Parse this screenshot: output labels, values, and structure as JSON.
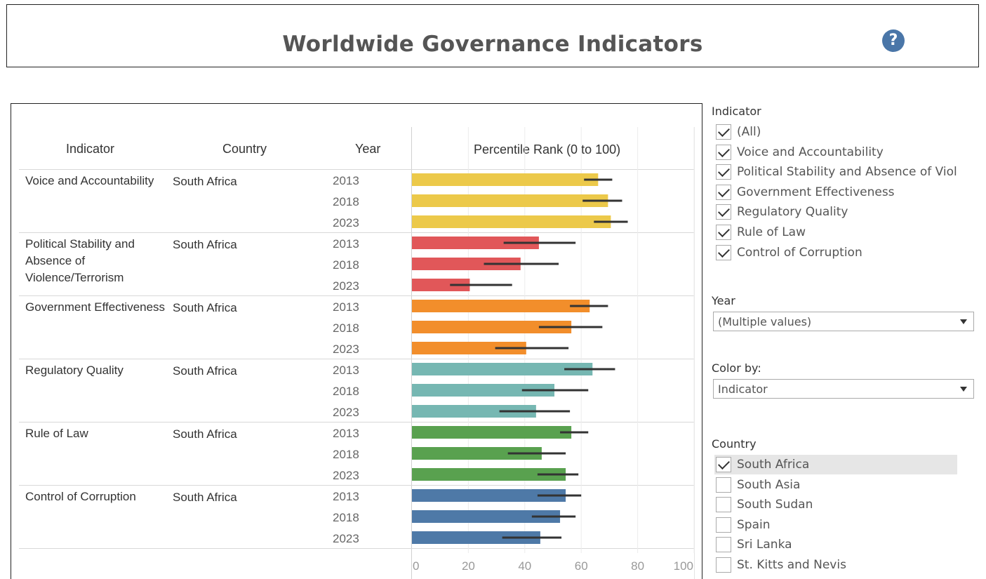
{
  "header": {
    "title": "Worldwide Governance Indicators",
    "help_icon": "?"
  },
  "table": {
    "columns": {
      "indicator": "Indicator",
      "country": "Country",
      "year": "Year",
      "rank": "Percentile Rank (0 to 100)"
    },
    "rows": [
      {
        "indicator": "Voice and Accountability",
        "country": "South Africa"
      },
      {
        "indicator": "Political Stability and Absence of Violence/Terrorism",
        "country": "South Africa"
      },
      {
        "indicator": "Government Effectiveness",
        "country": "South Africa"
      },
      {
        "indicator": "Regulatory Quality",
        "country": "South Africa"
      },
      {
        "indicator": "Rule of Law",
        "country": "South Africa"
      },
      {
        "indicator": "Control of Corruption",
        "country": "South Africa"
      }
    ]
  },
  "chart_data": {
    "type": "bar",
    "orientation": "horizontal",
    "title": "Percentile Rank (0 to 100)",
    "xlabel": "",
    "ylabel": "",
    "xlim": [
      0,
      100
    ],
    "x_ticks": [
      0,
      20,
      40,
      60,
      80,
      100
    ],
    "x_tick_labels": [
      "0",
      "20",
      "40",
      "60",
      "80",
      "100"
    ],
    "grid": true,
    "categories": [
      "2013",
      "2018",
      "2023"
    ],
    "series": [
      {
        "name": "Voice and Accountability",
        "color": "#ecc94a",
        "values": [
          66,
          69.5,
          70.5
        ],
        "ci_low": [
          61,
          60.5,
          64.5
        ],
        "ci_high": [
          71,
          74.5,
          76.5
        ]
      },
      {
        "name": "Political Stability and Absence of Violence/Terrorism",
        "color": "#e15759",
        "values": [
          45,
          38.5,
          20.5
        ],
        "ci_low": [
          32.5,
          25.5,
          13.5
        ],
        "ci_high": [
          58,
          52,
          35.5
        ]
      },
      {
        "name": "Government Effectiveness",
        "color": "#f28e2b",
        "values": [
          63,
          56.5,
          40.5
        ],
        "ci_low": [
          56,
          45,
          29.5
        ],
        "ci_high": [
          69.5,
          67.5,
          55.5
        ]
      },
      {
        "name": "Regulatory Quality",
        "color": "#76b7b2",
        "values": [
          64,
          50.5,
          44
        ],
        "ci_low": [
          54,
          39,
          31
        ],
        "ci_high": [
          72,
          62.5,
          56
        ]
      },
      {
        "name": "Rule of Law",
        "color": "#59a14f",
        "values": [
          56.5,
          46,
          54.5
        ],
        "ci_low": [
          52.5,
          34,
          44.5
        ],
        "ci_high": [
          62.5,
          54.5,
          59
        ]
      },
      {
        "name": "Control of Corruption",
        "color": "#4e79a7",
        "values": [
          54.5,
          52.5,
          45.5
        ],
        "ci_low": [
          44.5,
          42.5,
          32
        ],
        "ci_high": [
          60,
          58,
          53
        ]
      }
    ]
  },
  "filters": {
    "indicator": {
      "label": "Indicator",
      "items": [
        {
          "label": "(All)",
          "checked": true
        },
        {
          "label": "Voice and Accountability",
          "checked": true
        },
        {
          "label": "Political Stability and Absence of Viol...",
          "checked": true
        },
        {
          "label": "Government Effectiveness",
          "checked": true
        },
        {
          "label": "Regulatory Quality",
          "checked": true
        },
        {
          "label": "Rule of Law",
          "checked": true
        },
        {
          "label": "Control of Corruption",
          "checked": true
        }
      ]
    },
    "year": {
      "label": "Year",
      "value": "(Multiple values)"
    },
    "color_by": {
      "label": "Color by:",
      "value": "Indicator"
    },
    "country": {
      "label": "Country",
      "items": [
        {
          "label": "South Africa",
          "checked": true
        },
        {
          "label": "South Asia",
          "checked": false
        },
        {
          "label": "South Sudan",
          "checked": false
        },
        {
          "label": "Spain",
          "checked": false
        },
        {
          "label": "Sri Lanka",
          "checked": false
        },
        {
          "label": "St. Kitts and Nevis",
          "checked": false
        }
      ]
    }
  }
}
